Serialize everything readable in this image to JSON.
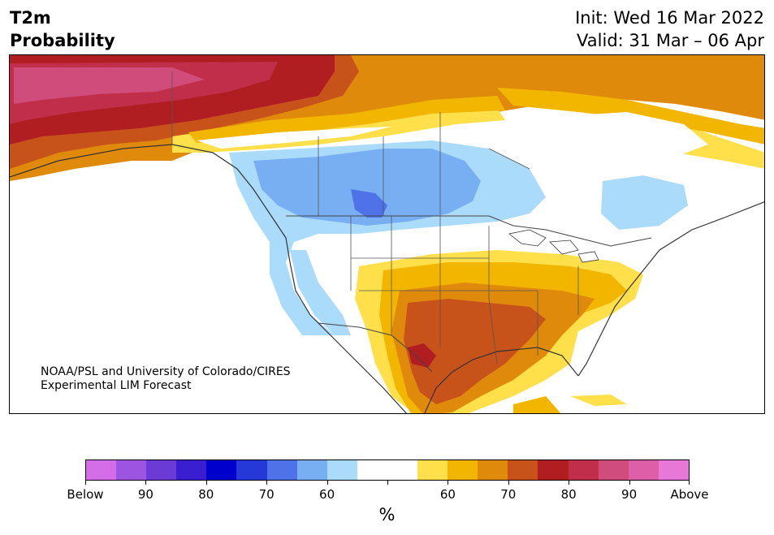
{
  "header": {
    "title_line1": "T2m",
    "title_line2": "Probability",
    "init": "Init: Wed 16 Mar 2022",
    "valid": "Valid: 31 Mar – 06 Apr"
  },
  "map": {
    "credit_line1": "NOAA/PSL and University of Colorado/CIRES",
    "credit_line2": "Experimental LIM Forecast"
  },
  "colorbar": {
    "colors": [
      "#d46ee8",
      "#9b55e0",
      "#6c3bd6",
      "#3a1fd0",
      "#0000cc",
      "#2638d8",
      "#5072e8",
      "#78aff2",
      "#abdbfb",
      "#ffffff",
      "#ffffff",
      "#ffe04a",
      "#f2b600",
      "#e08a0c",
      "#c8531a",
      "#b01e22",
      "#c02e4a",
      "#d04c7a",
      "#dd5fa8",
      "#e878d8"
    ],
    "tick_labels": [
      "Below",
      "90",
      "80",
      "70",
      "60",
      "",
      "60",
      "70",
      "80",
      "90",
      "Above"
    ],
    "unit": "%"
  }
}
